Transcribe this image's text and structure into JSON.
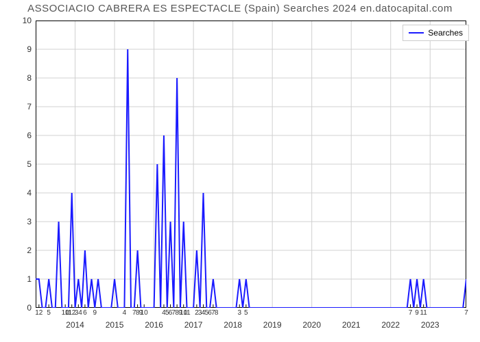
{
  "title": "ASSOCIACIO CABRERA ES ESPECTACLE (Spain) Searches 2024 en.datocapital.com",
  "chart": {
    "type": "line",
    "line_color": "#1a1aff",
    "line_width": 2,
    "background_color": "#ffffff",
    "grid_color": "#d0d0d0",
    "border_color": "#000000",
    "ylabel": null,
    "ylim": [
      0,
      10
    ],
    "yticks": [
      0,
      1,
      2,
      3,
      4,
      5,
      6,
      7,
      8,
      9,
      10
    ],
    "title_fontsize": 15,
    "ytick_fontsize": 12,
    "xtick_fontsize": 10,
    "year_fontsize": 12,
    "legend": {
      "label": "Searches",
      "position": "top-right"
    },
    "n_points": 132,
    "series": [
      1,
      1,
      0,
      0,
      1,
      0,
      0,
      3,
      0,
      0,
      0,
      4,
      0,
      1,
      0,
      2,
      0,
      1,
      0,
      1,
      0,
      0,
      0,
      0,
      1,
      0,
      0,
      0,
      9,
      0,
      0,
      2,
      0,
      0,
      0,
      0,
      0,
      5,
      0,
      6,
      0,
      3,
      0,
      8,
      0,
      3,
      0,
      0,
      0,
      2,
      0,
      4,
      0,
      0,
      1,
      0,
      0,
      0,
      0,
      0,
      0,
      0,
      1,
      0,
      1,
      0,
      0,
      0,
      0,
      0,
      0,
      0,
      0,
      0,
      0,
      0,
      0,
      0,
      0,
      0,
      0,
      0,
      0,
      0,
      0,
      0,
      0,
      0,
      0,
      0,
      0,
      0,
      0,
      0,
      0,
      0,
      0,
      0,
      0,
      0,
      0,
      0,
      0,
      0,
      0,
      0,
      0,
      0,
      0,
      0,
      0,
      0,
      0,
      0,
      1,
      0,
      1,
      0,
      1,
      0,
      0,
      0,
      0,
      0,
      0,
      0,
      0,
      0,
      0,
      0,
      0,
      1
    ],
    "x_minor_labels": [
      {
        "i": 1,
        "t": "12"
      },
      {
        "i": 4,
        "t": "5"
      },
      {
        "i": 9,
        "t": "10"
      },
      {
        "i": 10,
        "t": "11"
      },
      {
        "i": 11,
        "t": "12"
      },
      {
        "i": 13,
        "t": "34"
      },
      {
        "i": 15,
        "t": "6"
      },
      {
        "i": 18,
        "t": "9"
      },
      {
        "i": 27,
        "t": "4"
      },
      {
        "i": 30,
        "t": "7"
      },
      {
        "i": 31,
        "t": "8"
      },
      {
        "i": 32,
        "t": "9"
      },
      {
        "i": 33,
        "t": "10"
      },
      {
        "i": 39,
        "t": "4"
      },
      {
        "i": 40,
        "t": "5"
      },
      {
        "i": 41,
        "t": "6"
      },
      {
        "i": 42,
        "t": "7"
      },
      {
        "i": 43,
        "t": "8"
      },
      {
        "i": 44,
        "t": "9"
      },
      {
        "i": 45,
        "t": "10"
      },
      {
        "i": 46,
        "t": "11"
      },
      {
        "i": 49,
        "t": "2"
      },
      {
        "i": 50,
        "t": "3"
      },
      {
        "i": 51,
        "t": "4"
      },
      {
        "i": 52,
        "t": "5"
      },
      {
        "i": 53,
        "t": "6"
      },
      {
        "i": 54,
        "t": "7"
      },
      {
        "i": 55,
        "t": "8"
      },
      {
        "i": 62,
        "t": "3"
      },
      {
        "i": 64,
        "t": "5"
      },
      {
        "i": 114,
        "t": "7"
      },
      {
        "i": 116,
        "t": "9"
      },
      {
        "i": 118,
        "t": "11"
      },
      {
        "i": 131,
        "t": "7"
      }
    ],
    "year_labels": [
      {
        "i": 12,
        "t": "2014"
      },
      {
        "i": 24,
        "t": "2015"
      },
      {
        "i": 36,
        "t": "2016"
      },
      {
        "i": 48,
        "t": "2017"
      },
      {
        "i": 60,
        "t": "2018"
      },
      {
        "i": 72,
        "t": "2019"
      },
      {
        "i": 84,
        "t": "2020"
      },
      {
        "i": 96,
        "t": "2021"
      },
      {
        "i": 108,
        "t": "2022"
      },
      {
        "i": 120,
        "t": "2023"
      }
    ]
  }
}
